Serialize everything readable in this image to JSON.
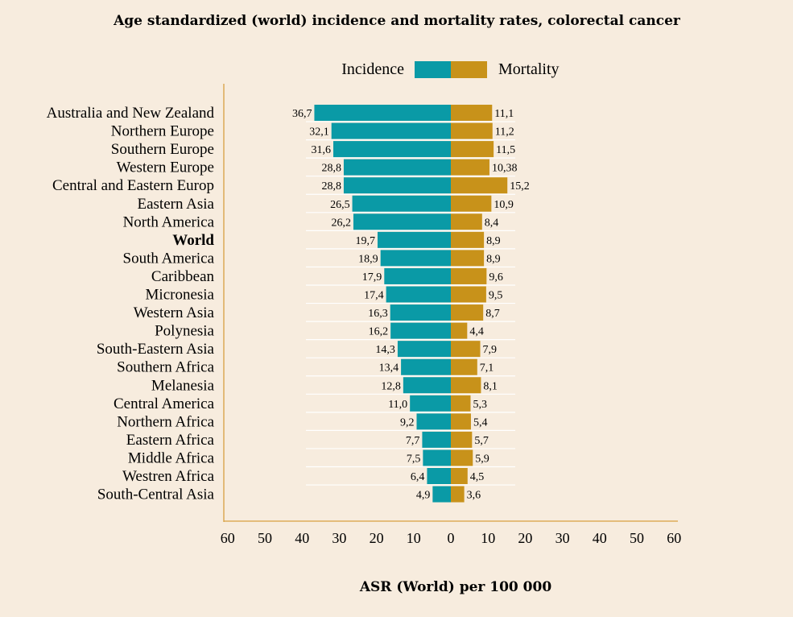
{
  "chart_data": {
    "type": "bar",
    "orientation": "horizontal",
    "layout": "back-to-back",
    "title": "Age standardized (world) incidence and mortality rates, colorectal cancer",
    "xlabel": "ASR (World) per 100 000",
    "ylabel": "",
    "xlim": [
      -60,
      60
    ],
    "x_ticks": [
      "60",
      "50",
      "40",
      "30",
      "20",
      "10",
      "0",
      "10",
      "20",
      "30",
      "40",
      "50",
      "60"
    ],
    "categories": [
      "Australia and New Zealand",
      "Northern Europe",
      "Southern Europe",
      "Western Europe",
      "Central and Eastern Europ",
      "Eastern Asia",
      "North America",
      "World",
      "South America",
      "Caribbean",
      "Micronesia",
      "Western Asia",
      "Polynesia",
      "South-Eastern Asia",
      "Southern Africa",
      "Melanesia",
      "Central America",
      "Northern Africa",
      "Eastern Africa",
      "Middle Africa",
      "Westren Africa",
      "South-Central Asia"
    ],
    "bold_categories": [
      "World"
    ],
    "series": [
      {
        "name": "Incidence",
        "side": "left",
        "color": "#0a9aa6",
        "values": [
          36.7,
          32.1,
          31.6,
          28.8,
          28.8,
          26.5,
          26.2,
          19.7,
          18.9,
          17.9,
          17.4,
          16.3,
          16.2,
          14.3,
          13.4,
          12.8,
          11.0,
          9.2,
          7.7,
          7.5,
          6.4,
          4.9
        ],
        "labels": [
          "36,7",
          "32,1",
          "31,6",
          "28,8",
          "28,8",
          "26,5",
          "26,2",
          "19,7",
          "18,9",
          "17,9",
          "17,4",
          "16,3",
          "16,2",
          "14,3",
          "13,4",
          "12,8",
          "11,0",
          "9,2",
          "7,7",
          "7,5",
          "6,4",
          "4,9"
        ]
      },
      {
        "name": "Mortality",
        "side": "right",
        "color": "#c8921a",
        "values": [
          11.1,
          11.2,
          11.5,
          10.38,
          15.2,
          10.9,
          8.4,
          8.9,
          8.9,
          9.6,
          9.5,
          8.7,
          4.4,
          7.9,
          7.1,
          8.1,
          5.3,
          5.4,
          5.7,
          5.9,
          4.5,
          3.6
        ],
        "labels": [
          "11,1",
          "11,2",
          "11,5",
          "10,38",
          "15,2",
          "10,9",
          "8,4",
          "8,9",
          "8,9",
          "9,6",
          "9,5",
          "8,7",
          "4,4",
          "7,9",
          "7,1",
          "8,1",
          "5,3",
          "5,4",
          "5,7",
          "5,9",
          "4,5",
          "3,6"
        ]
      }
    ],
    "legend": {
      "position": "top-center",
      "entries": [
        "Incidence",
        "Mortality"
      ]
    },
    "axis_color": "#d8a040",
    "grid": false
  }
}
